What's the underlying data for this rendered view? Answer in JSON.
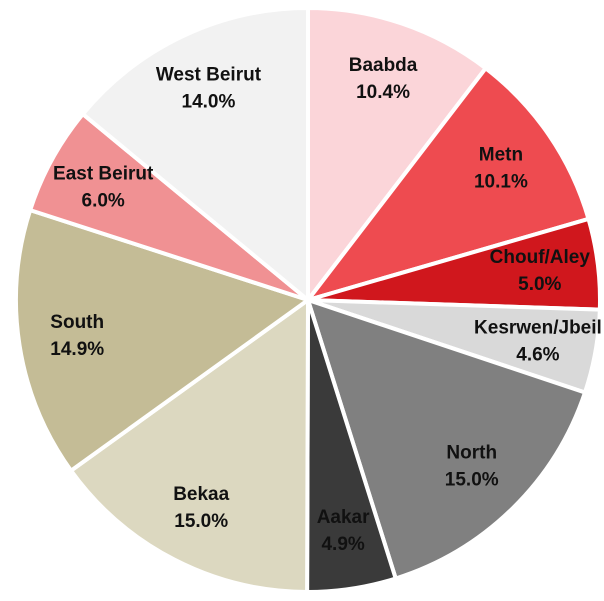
{
  "chart_data": {
    "type": "pie",
    "categories": [
      "Baabda",
      "Metn",
      "Chouf/Aley",
      "Kesrwen/Jbeil",
      "North",
      "Aakar",
      "Bekaa",
      "South",
      "East Beirut",
      "West Beirut"
    ],
    "values": [
      10.4,
      10.1,
      5.0,
      4.6,
      15.0,
      4.9,
      15.0,
      14.9,
      6.0,
      14.0
    ],
    "value_labels": [
      "10.4%",
      "10.1%",
      "5.0%",
      "4.6%",
      "15.0%",
      "4.9%",
      "15.0%",
      "14.9%",
      "6.0%",
      "14.0%"
    ],
    "colors": [
      "#fbd5d9",
      "#ee4b50",
      "#d0171d",
      "#d9d9d9",
      "#808080",
      "#3a3a3a",
      "#dcd8c0",
      "#c4bc96",
      "#f09193",
      "#f2f2f2"
    ]
  }
}
